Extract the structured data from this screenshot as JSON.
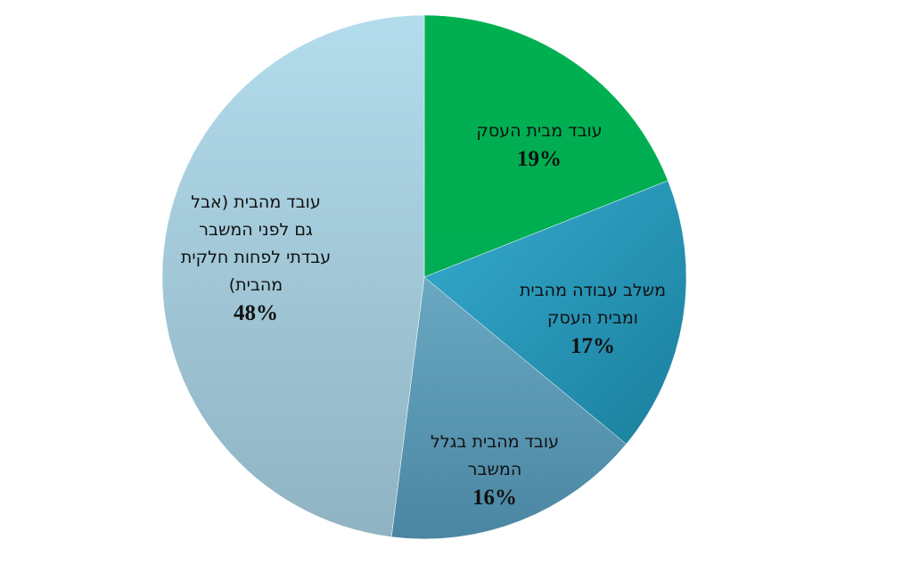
{
  "chart_data": {
    "type": "pie",
    "title": "",
    "slices": [
      {
        "label_lines": [
          "עובד מבית העסק"
        ],
        "value": 19,
        "value_label": "19%",
        "color": "#00b050"
      },
      {
        "label_lines": [
          "משלב עבודה מהבית",
          "ומבית העסק"
        ],
        "value": 17,
        "value_label": "17%",
        "color": "#2fa0c4"
      },
      {
        "label_lines": [
          "עובד מהבית בגלל",
          "המשבר"
        ],
        "value": 16,
        "value_label": "16%",
        "color": "#5990a6"
      },
      {
        "label_lines": [
          "עובד מהבית (אבל",
          "גם לפני המשבר",
          "עבדתי לפחות חלקית",
          "מהבית)"
        ],
        "value": 48,
        "value_label": "48%",
        "color": "#a8d2e2"
      }
    ]
  }
}
